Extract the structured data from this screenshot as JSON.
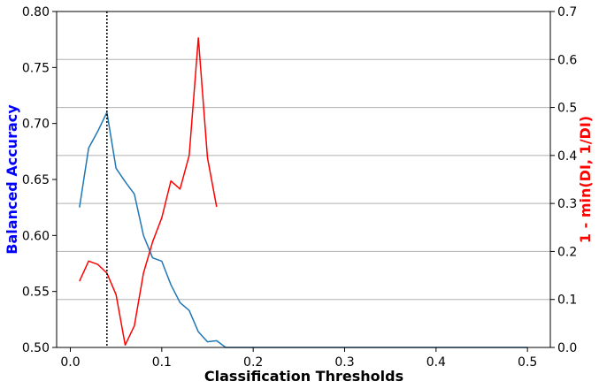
{
  "chart_data": {
    "type": "line",
    "xlabel": "Classification Thresholds",
    "ylabel_left": "Balanced Accuracy",
    "ylabel_right": "1 - min(DI, 1/DI)",
    "xlim": [
      -0.015,
      0.525
    ],
    "ylim_left": [
      0.5,
      0.8
    ],
    "ylim_right": [
      0.0,
      0.7
    ],
    "x_ticks": [
      0.0,
      0.1,
      0.2,
      0.3,
      0.4,
      0.5
    ],
    "x_tick_labels": [
      "0.0",
      "0.1",
      "0.2",
      "0.3",
      "0.4",
      "0.5"
    ],
    "y_left_ticks": [
      0.5,
      0.55,
      0.6,
      0.65,
      0.7,
      0.75,
      0.8
    ],
    "y_left_tick_labels": [
      "0.50",
      "0.55",
      "0.60",
      "0.65",
      "0.70",
      "0.75",
      "0.80"
    ],
    "y_right_ticks": [
      0.0,
      0.1,
      0.2,
      0.3,
      0.4,
      0.5,
      0.6,
      0.7
    ],
    "y_right_tick_labels": [
      "0.0",
      "0.1",
      "0.2",
      "0.3",
      "0.4",
      "0.5",
      "0.6",
      "0.7"
    ],
    "grid": "horizontal lines at right-axis ticks",
    "vline_x": 0.04,
    "colors": {
      "accuracy": "#1f77b4",
      "disparity": "#ff0000",
      "left_label": "#0000ff",
      "right_label": "#ff0000",
      "grid": "#b0b0b0",
      "vline": "#000000"
    },
    "series": [
      {
        "axis": "left",
        "x": [
          0.01,
          0.02,
          0.03,
          0.04,
          0.05,
          0.06,
          0.07,
          0.08,
          0.09,
          0.1,
          0.11,
          0.12,
          0.13,
          0.14,
          0.15,
          0.16,
          0.17,
          0.18,
          0.19,
          0.2,
          0.25,
          0.3,
          0.35,
          0.4,
          0.45,
          0.5
        ],
        "values": [
          0.625,
          0.678,
          0.693,
          0.71,
          0.66,
          0.648,
          0.637,
          0.6,
          0.58,
          0.577,
          0.556,
          0.54,
          0.533,
          0.514,
          0.505,
          0.506,
          0.5,
          0.5,
          0.5,
          0.5,
          0.5,
          0.5,
          0.5,
          0.5,
          0.5,
          0.5
        ]
      },
      {
        "axis": "right",
        "x": [
          0.01,
          0.02,
          0.03,
          0.04,
          0.05,
          0.06,
          0.07,
          0.08,
          0.09,
          0.1,
          0.11,
          0.12,
          0.13,
          0.14,
          0.15,
          0.16
        ],
        "values": [
          0.138,
          0.18,
          0.173,
          0.155,
          0.11,
          0.005,
          0.045,
          0.155,
          0.22,
          0.27,
          0.347,
          0.33,
          0.4,
          0.645,
          0.395,
          0.293
        ]
      }
    ]
  }
}
